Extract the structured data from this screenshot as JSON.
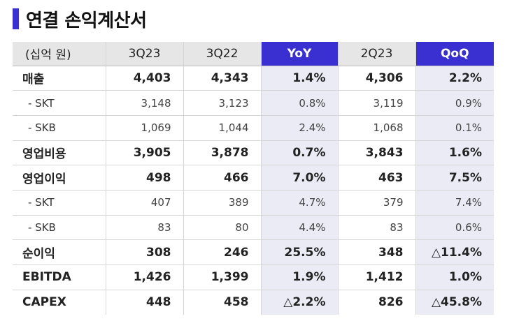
{
  "title": "연결 손익계산서",
  "colors": {
    "accent": "#3a2fd0",
    "highlight_bg": "#ebebf6",
    "header_bg": "#e6e6e6"
  },
  "table": {
    "headers": [
      "(십억 원)",
      "3Q23",
      "3Q22",
      "YoY",
      "2Q23",
      "QoQ"
    ],
    "rows": [
      {
        "label": "매출",
        "type": "main",
        "values": [
          "4,403",
          "4,343",
          "1.4%",
          "4,306",
          "2.2%"
        ]
      },
      {
        "label": "- SKT",
        "type": "sub",
        "values": [
          "3,148",
          "3,123",
          "0.8%",
          "3,119",
          "0.9%"
        ]
      },
      {
        "label": "- SKB",
        "type": "sub",
        "values": [
          "1,069",
          "1,044",
          "2.4%",
          "1,068",
          "0.1%"
        ]
      },
      {
        "label": "영업비용",
        "type": "main",
        "values": [
          "3,905",
          "3,878",
          "0.7%",
          "3,843",
          "1.6%"
        ]
      },
      {
        "label": "영업이익",
        "type": "main",
        "values": [
          "498",
          "466",
          "7.0%",
          "463",
          "7.5%"
        ]
      },
      {
        "label": "- SKT",
        "type": "sub",
        "values": [
          "407",
          "389",
          "4.7%",
          "379",
          "7.4%"
        ]
      },
      {
        "label": "- SKB",
        "type": "sub",
        "values": [
          "83",
          "80",
          "4.4%",
          "83",
          "0.6%"
        ]
      },
      {
        "label": "순이익",
        "type": "main",
        "values": [
          "308",
          "246",
          "25.5%",
          "348",
          "△11.4%"
        ]
      },
      {
        "label": "EBITDA",
        "type": "main",
        "values": [
          "1,426",
          "1,399",
          "1.9%",
          "1,412",
          "1.0%"
        ]
      },
      {
        "label": "CAPEX",
        "type": "main",
        "values": [
          "448",
          "458",
          "△2.2%",
          "826",
          "△45.8%"
        ]
      }
    ]
  }
}
